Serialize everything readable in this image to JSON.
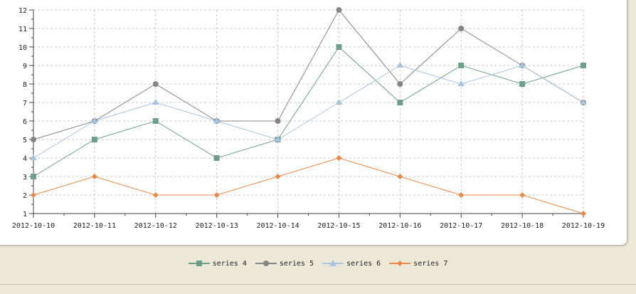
{
  "chart_data": {
    "type": "line",
    "x": [
      "2012-10-10",
      "2012-10-11",
      "2012-10-12",
      "2012-10-13",
      "2012-10-14",
      "2012-10-15",
      "2012-10-16",
      "2012-10-17",
      "2012-10-18",
      "2012-10-19"
    ],
    "ylim": [
      1,
      12
    ],
    "yticks": [
      1,
      2,
      3,
      4,
      5,
      6,
      7,
      8,
      9,
      10,
      11,
      12
    ],
    "grid": true,
    "legend_position": "bottom-center",
    "series": [
      {
        "name": "series 4",
        "color": "#6e9e8c",
        "marker": "square",
        "values": [
          3,
          5,
          6,
          4,
          5,
          10,
          7,
          9,
          8,
          9
        ]
      },
      {
        "name": "series 5",
        "color": "#858585",
        "marker": "circle",
        "values": [
          5,
          6,
          8,
          6,
          6,
          12,
          8,
          11,
          9,
          7
        ]
      },
      {
        "name": "series 6",
        "color": "#a8c4e0",
        "marker": "triangle",
        "values": [
          4,
          6,
          7,
          6,
          5,
          7,
          9,
          8,
          9,
          7
        ]
      },
      {
        "name": "series 7",
        "color": "#e8894a",
        "marker": "diamond",
        "values": [
          2,
          3,
          2,
          2,
          3,
          4,
          3,
          2,
          2,
          1
        ]
      }
    ]
  }
}
